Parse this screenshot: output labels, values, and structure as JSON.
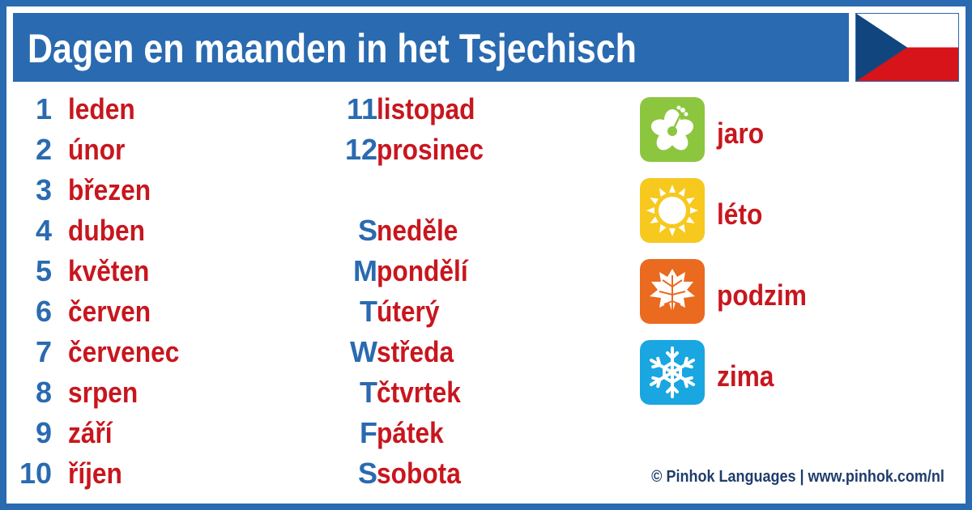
{
  "header": {
    "title": "Dagen en maanden in het Tsjechisch"
  },
  "flag": {
    "name": "czech-flag-icon"
  },
  "months": [
    {
      "num": "1",
      "name": "leden"
    },
    {
      "num": "2",
      "name": "únor"
    },
    {
      "num": "3",
      "name": "březen"
    },
    {
      "num": "4",
      "name": "duben"
    },
    {
      "num": "5",
      "name": "květen"
    },
    {
      "num": "6",
      "name": "červen"
    },
    {
      "num": "7",
      "name": "červenec"
    },
    {
      "num": "8",
      "name": "srpen"
    },
    {
      "num": "9",
      "name": "září"
    },
    {
      "num": "10",
      "name": "říjen"
    },
    {
      "num": "11",
      "name": "listopad"
    },
    {
      "num": "12",
      "name": "prosinec"
    }
  ],
  "days": [
    {
      "abbr": "S",
      "name": "neděle"
    },
    {
      "abbr": "M",
      "name": "pondělí"
    },
    {
      "abbr": "T",
      "name": "úterý"
    },
    {
      "abbr": "W",
      "name": "středa"
    },
    {
      "abbr": "T",
      "name": "čtvrtek"
    },
    {
      "abbr": "F",
      "name": "pátek"
    },
    {
      "abbr": "S",
      "name": "sobota"
    }
  ],
  "seasons": [
    {
      "name": "jaro",
      "icon": "flower-icon",
      "color": "#8cc63f"
    },
    {
      "name": "léto",
      "icon": "sun-icon",
      "color": "#f7c81e"
    },
    {
      "name": "podzim",
      "icon": "leaf-icon",
      "color": "#ea6a1f"
    },
    {
      "name": "zima",
      "icon": "snowflake-icon",
      "color": "#1aa6e0"
    }
  ],
  "footer": {
    "credit": "© Pinhok Languages | www.pinhok.com/nl"
  },
  "colors": {
    "accent": "#2a6ab0",
    "word": "#c8161e"
  }
}
